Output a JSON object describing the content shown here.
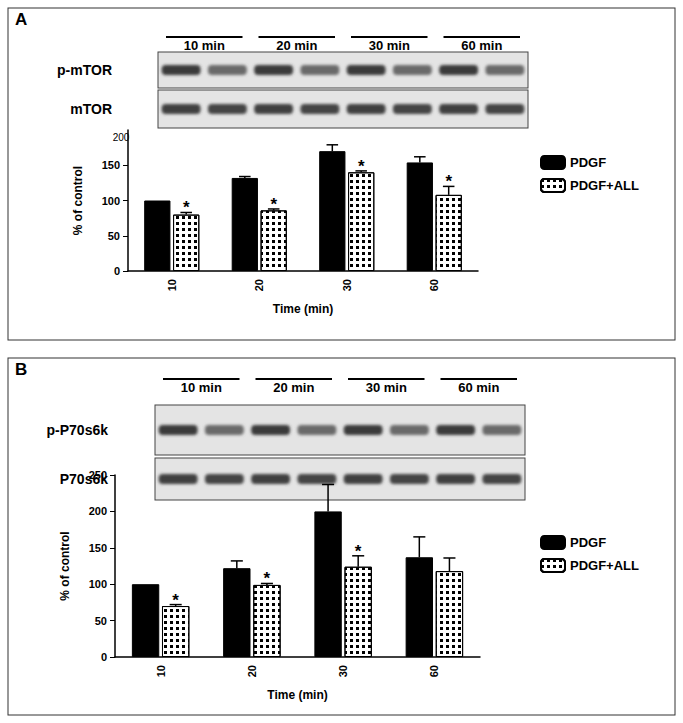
{
  "chart_data": [
    {
      "type": "bar",
      "annotations": {
        "panel": "A",
        "blot_rows": [
          "p-mTOR",
          "mTOR"
        ],
        "blot_lanes": [
          "10 min",
          "20 min",
          "30 min",
          "60 min"
        ],
        "blot_marker": "200"
      },
      "x_label": "Time (min)",
      "y_label": "% of control",
      "categories": [
        "10",
        "20",
        "30",
        "60"
      ],
      "series": [
        {
          "name": "PDGF",
          "color": "#000000",
          "values": [
            100,
            132,
            170,
            154
          ],
          "errors": [
            0,
            2,
            9,
            8
          ]
        },
        {
          "name": "PDGF+ALL",
          "color": "#000000",
          "values": [
            80,
            86,
            140,
            108
          ],
          "errors": [
            3,
            2,
            2,
            12
          ],
          "significance": [
            "*",
            "*",
            "*",
            "*"
          ]
        }
      ],
      "ylim": [
        0,
        200
      ],
      "yticks": [
        0,
        50,
        100,
        150
      ],
      "grid": false,
      "legend": "right"
    },
    {
      "type": "bar",
      "annotations": {
        "panel": "B",
        "blot_rows": [
          "p-P70s6k",
          "P70s6k"
        ],
        "blot_lanes": [
          "10 min",
          "20 min",
          "30 min",
          "60 min"
        ]
      },
      "x_label": "Time (min)",
      "y_label": "% of control",
      "categories": [
        "10",
        "20",
        "30",
        "60"
      ],
      "series": [
        {
          "name": "PDGF",
          "color": "#000000",
          "values": [
            100,
            122,
            200,
            137
          ],
          "errors": [
            0,
            10,
            37,
            28
          ]
        },
        {
          "name": "PDGF+ALL",
          "color": "#000000",
          "values": [
            70,
            99,
            124,
            118
          ],
          "errors": [
            2,
            2,
            15,
            18
          ],
          "significance": [
            "*",
            "*",
            "*",
            null
          ]
        }
      ],
      "ylim": [
        0,
        250
      ],
      "yticks": [
        0,
        50,
        100,
        150,
        200,
        250
      ],
      "grid": false,
      "legend": "right"
    }
  ]
}
